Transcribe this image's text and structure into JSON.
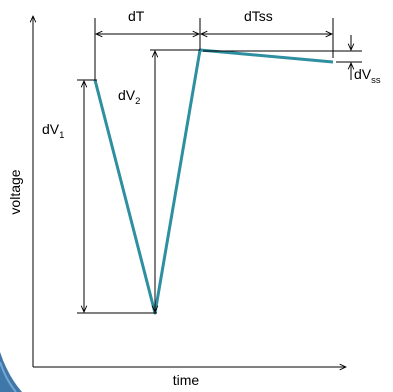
{
  "labels": {
    "dT": "dT",
    "dTss": "dTss",
    "dV1_main": "dV",
    "dV1_sub": "1",
    "dV2_main": "dV",
    "dV2_sub": "2",
    "dVss_main": "dV",
    "dVss_sub": "ss",
    "ylabel": "voltage",
    "xlabel": "time"
  },
  "colors": {
    "trace": "#2e8fa0",
    "axis": "#000000",
    "corner_swoosh": "#1d5f9a"
  }
}
